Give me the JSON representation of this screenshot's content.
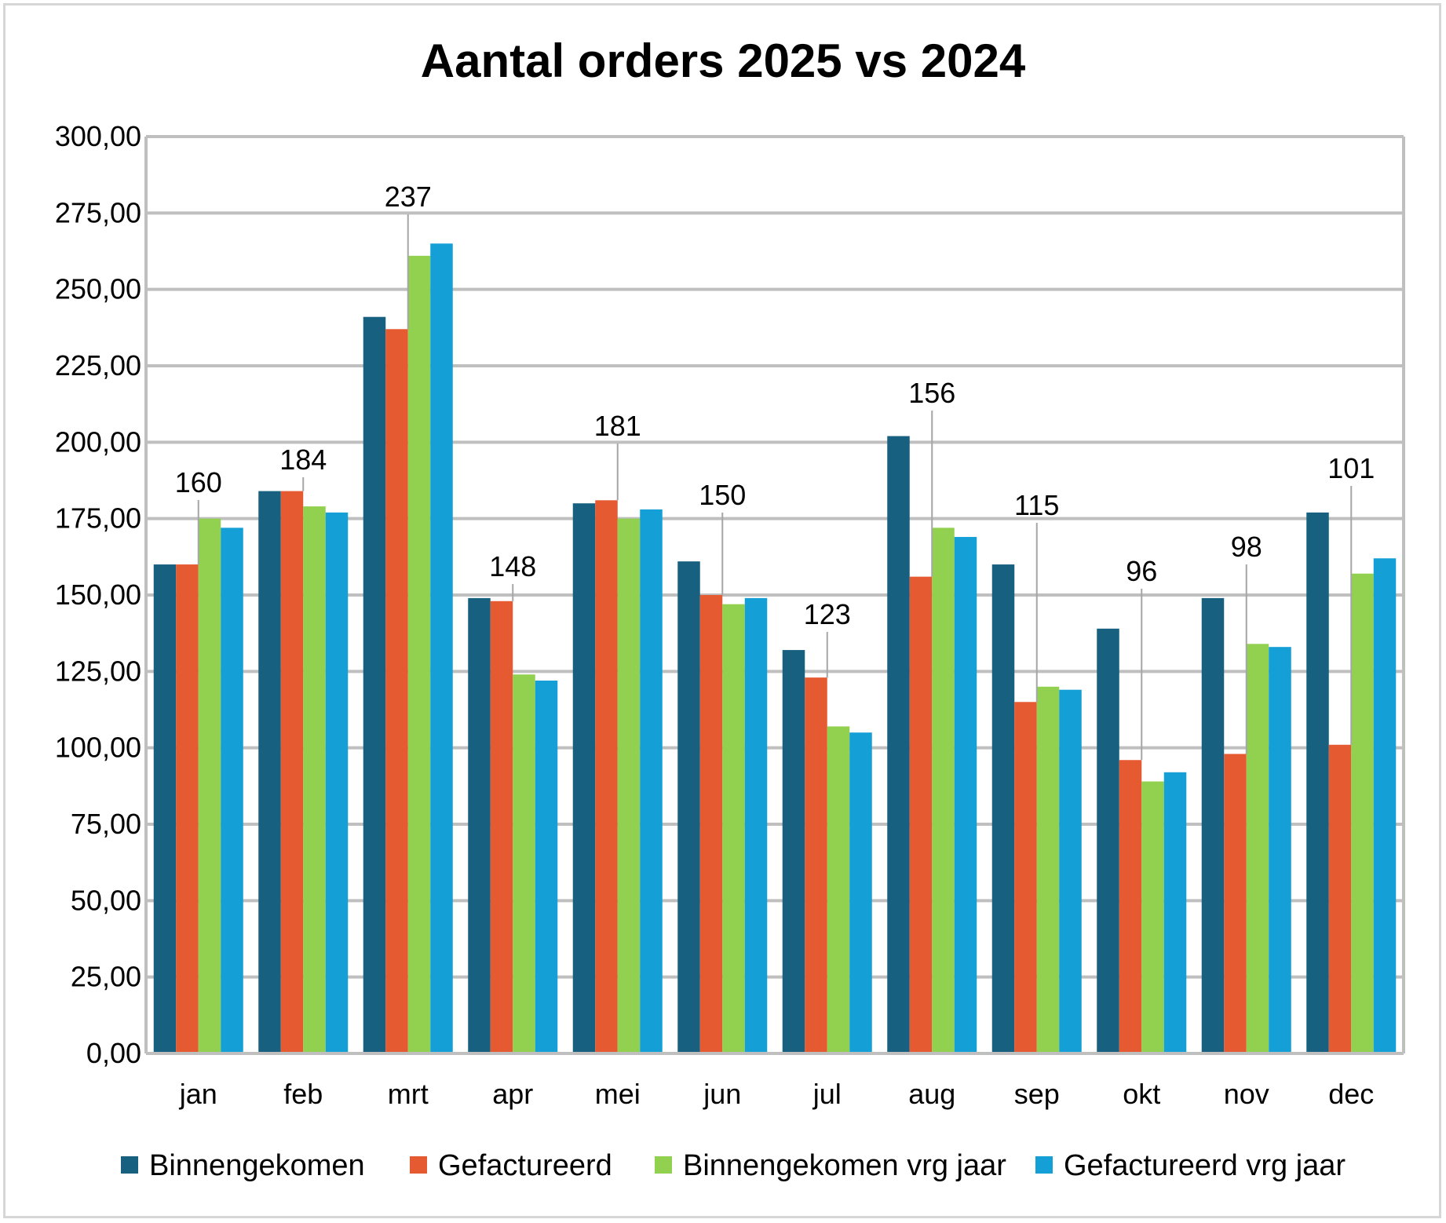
{
  "chart_data": {
    "type": "bar",
    "title": "Aantal orders 2025 vs 2024",
    "xlabel": "",
    "ylabel": "",
    "ylim": [
      0,
      300
    ],
    "yticks": [
      "0,00",
      "25,00",
      "50,00",
      "75,00",
      "100,00",
      "125,00",
      "150,00",
      "175,00",
      "200,00",
      "225,00",
      "250,00",
      "275,00",
      "300,00"
    ],
    "categories": [
      "jan",
      "feb",
      "mrt",
      "apr",
      "mei",
      "jun",
      "jul",
      "aug",
      "sep",
      "okt",
      "nov",
      "dec"
    ],
    "grid": true,
    "legend_position": "bottom",
    "series": [
      {
        "name": "Binnengekomen",
        "color": "#17607f",
        "values": [
          160,
          184,
          241,
          149,
          180,
          161,
          132,
          202,
          160,
          139,
          149,
          177
        ]
      },
      {
        "name": "Gefactureerd",
        "color": "#e65a31",
        "values": [
          160,
          184,
          237,
          148,
          181,
          150,
          123,
          156,
          115,
          96,
          98,
          101
        ]
      },
      {
        "name": "Binnengekomen vrg jaar",
        "color": "#92d050",
        "values": [
          175,
          179,
          261,
          124,
          175,
          147,
          107,
          172,
          120,
          89,
          134,
          157
        ]
      },
      {
        "name": "Gefactureerd vrg jaar",
        "color": "#149fd6",
        "values": [
          172,
          177,
          265,
          122,
          178,
          149,
          105,
          169,
          119,
          92,
          133,
          162
        ]
      }
    ],
    "data_labels": {
      "series": "Gefactureerd",
      "labels": [
        "160",
        "184",
        "237",
        "148",
        "181",
        "150",
        "123",
        "156",
        "115",
        "96",
        "98",
        "101"
      ]
    }
  }
}
